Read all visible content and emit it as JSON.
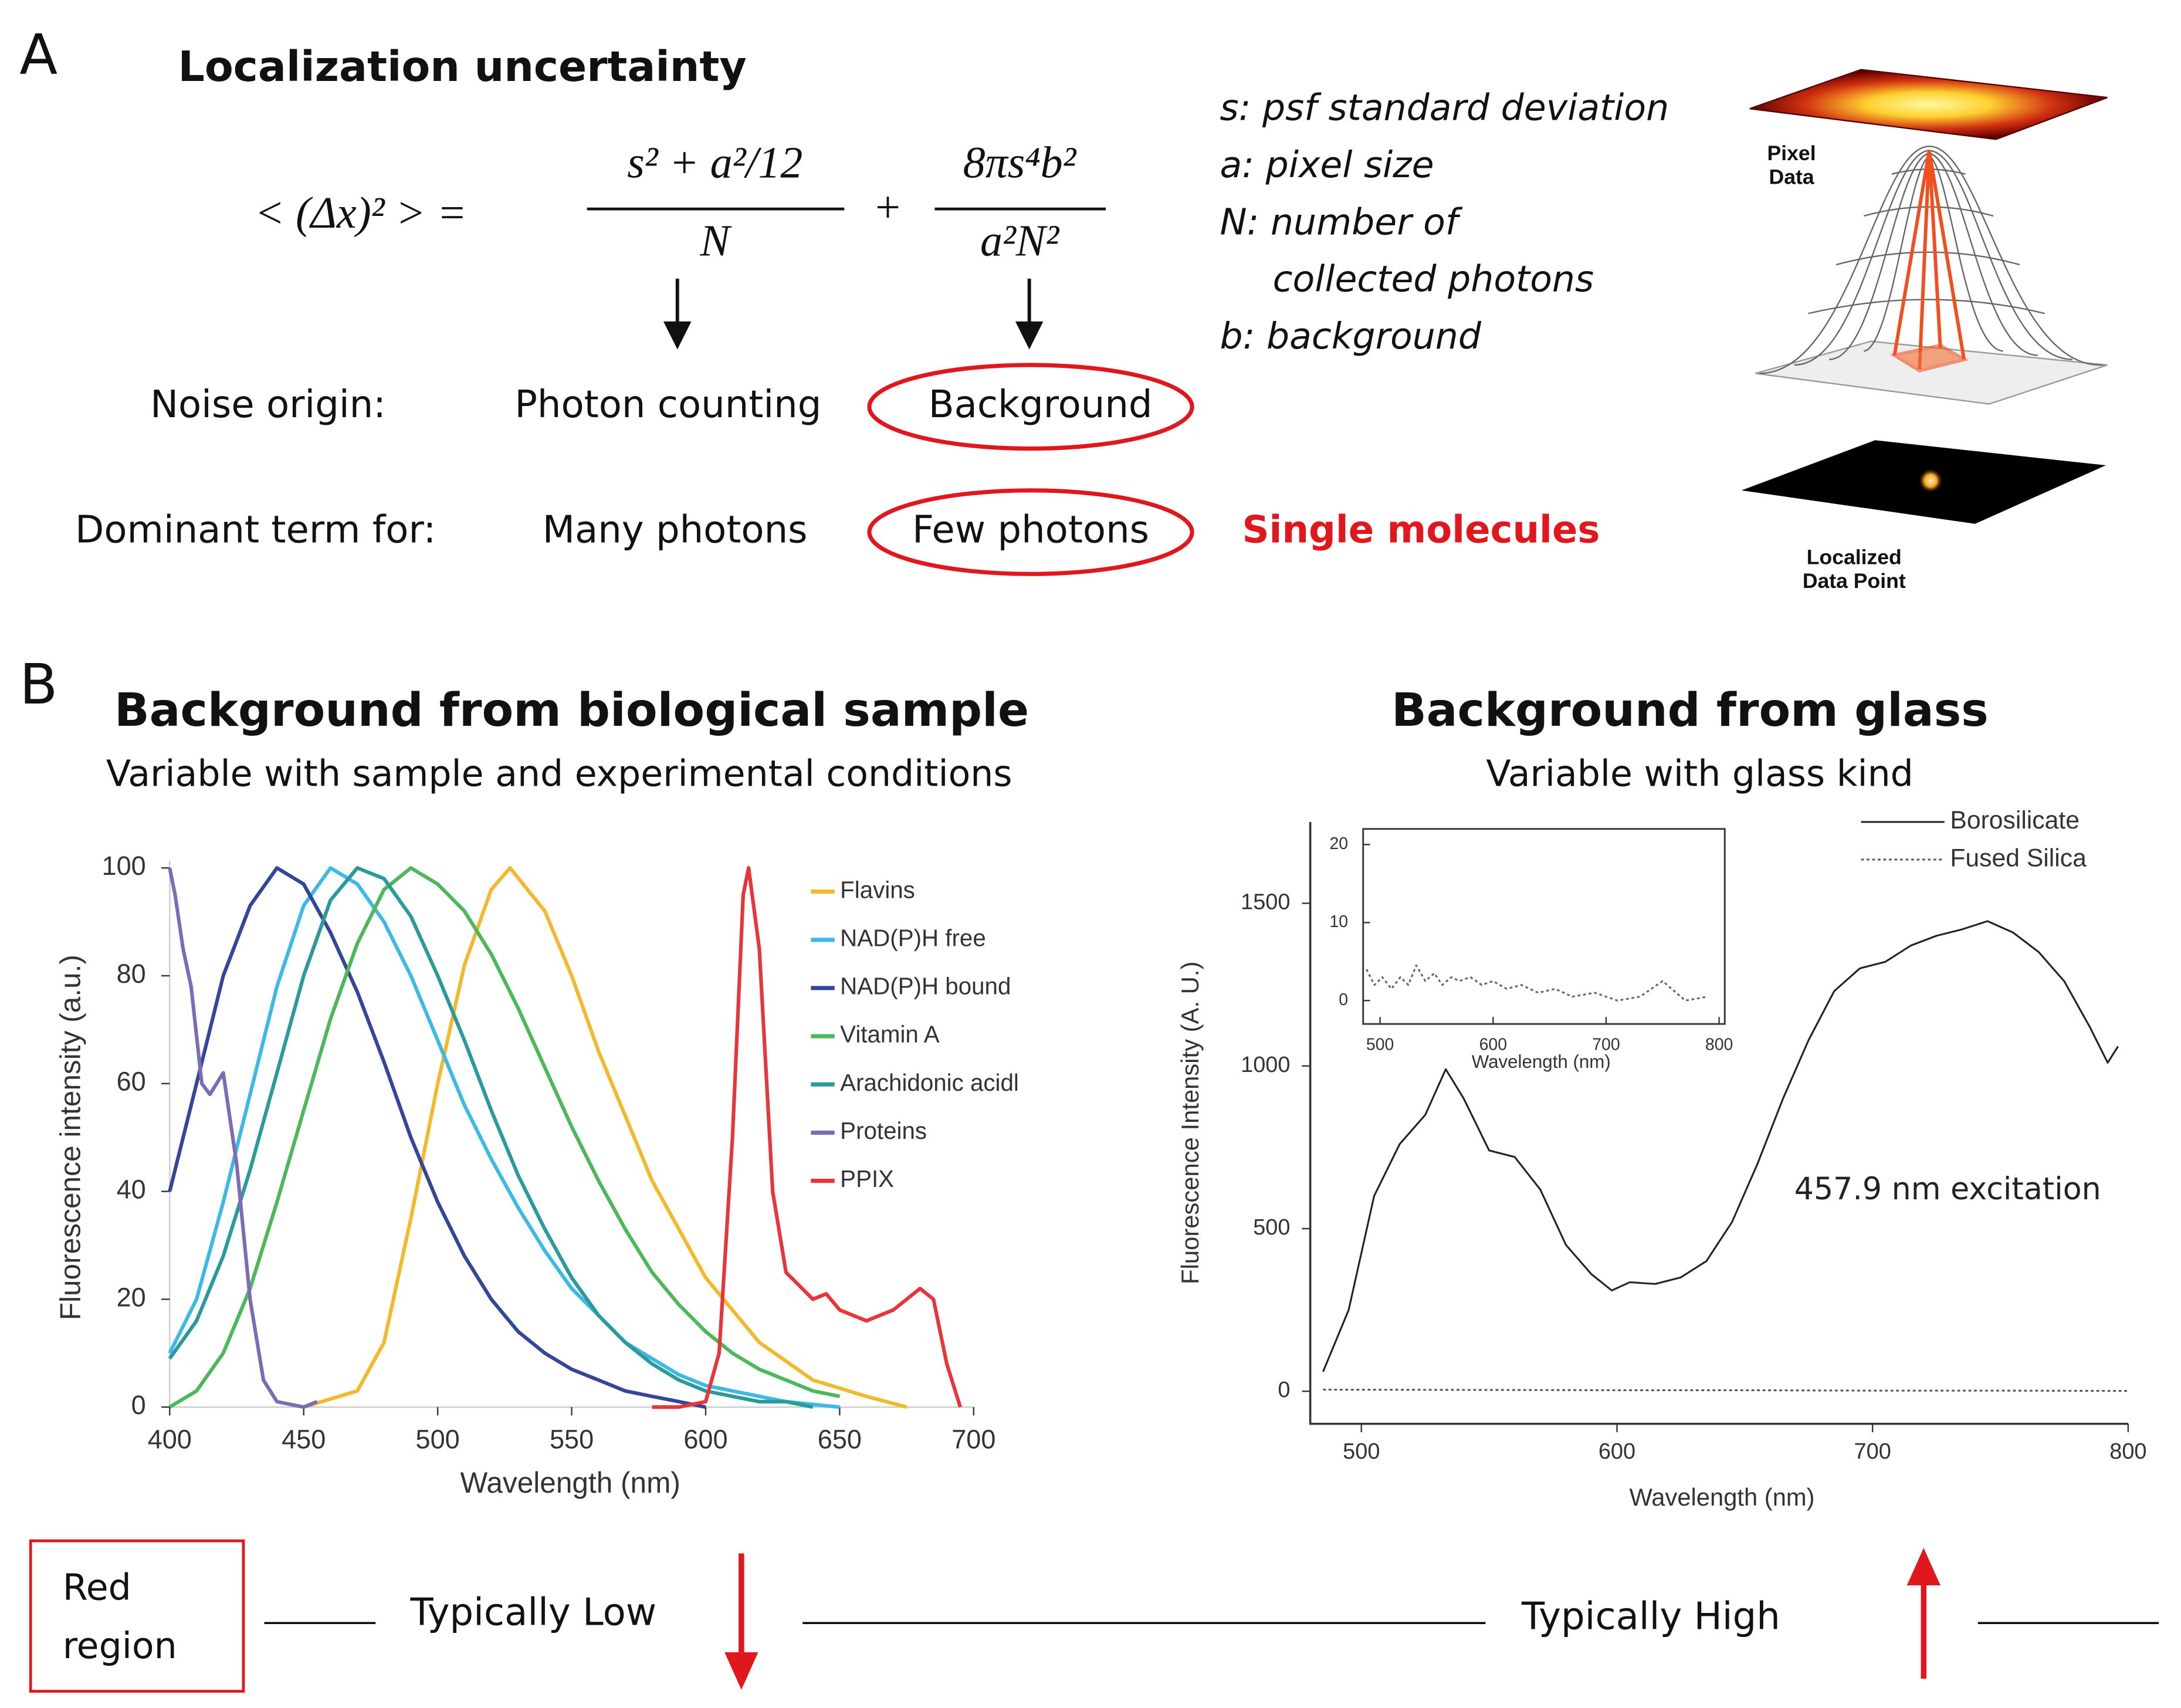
{
  "panel_a": {
    "label": "A",
    "title": "Localization uncertainty",
    "formula": {
      "lhs": "< (Δx)² > =",
      "term1_num": "s² + a²/12",
      "term1_den": "N",
      "plus": "+",
      "term2_num": "8πs⁴b²",
      "term2_den": "a²N²"
    },
    "definitions": [
      "s: psf standard deviation",
      "a: pixel size",
      "N: number of",
      "collected photons",
      "b: background"
    ],
    "rows": [
      {
        "label": "Noise origin:",
        "left": "Photon counting",
        "right": "Background"
      },
      {
        "label": "Dominant term for:",
        "left": "Many photons",
        "right": "Few photons",
        "note": "Single molecules"
      }
    ],
    "image_labels": [
      "Pixel",
      "Data",
      "Localized",
      "Data Point"
    ]
  },
  "panel_b": {
    "label": "B",
    "left_title": "Background from biological sample",
    "left_subtitle": "Variable with sample and experimental conditions",
    "right_title": "Background from glass",
    "right_subtitle": "Variable with glass kind"
  },
  "chart_data": [
    {
      "type": "line",
      "xlabel": "Wavelength (nm)",
      "ylabel": "Fluorescence intensity (a.u.)",
      "xlim": [
        400,
        700
      ],
      "ylim": [
        0,
        100
      ],
      "xticks": [
        400,
        450,
        500,
        550,
        600,
        650,
        700
      ],
      "yticks": [
        0,
        20,
        40,
        60,
        80,
        100
      ],
      "legend": "right",
      "series": [
        {
          "name": "Flavins",
          "color": "#f2b92c",
          "style": "solid",
          "x": [
            450,
            470,
            480,
            490,
            500,
            510,
            520,
            527,
            540,
            550,
            560,
            580,
            600,
            620,
            640,
            660,
            675
          ],
          "values": [
            0,
            3,
            12,
            35,
            60,
            82,
            96,
            100,
            92,
            80,
            66,
            42,
            24,
            12,
            5,
            2,
            0
          ]
        },
        {
          "name": "NAD(P)H free",
          "color": "#3cb9e6",
          "style": "solid",
          "x": [
            400,
            410,
            420,
            430,
            440,
            450,
            460,
            470,
            480,
            490,
            500,
            510,
            520,
            530,
            540,
            550,
            560,
            570,
            580,
            590,
            600,
            610,
            620,
            630,
            640,
            650
          ],
          "values": [
            10,
            20,
            38,
            58,
            78,
            93,
            100,
            97,
            90,
            80,
            68,
            56,
            46,
            37,
            29,
            22,
            17,
            12,
            9,
            6,
            4,
            3,
            2,
            1,
            0.5,
            0
          ]
        },
        {
          "name": "NAD(P)H bound",
          "color": "#34469b",
          "style": "solid",
          "x": [
            400,
            410,
            420,
            430,
            440,
            450,
            460,
            470,
            480,
            490,
            500,
            510,
            520,
            530,
            540,
            550,
            560,
            570,
            580,
            590,
            600
          ],
          "values": [
            40,
            60,
            80,
            93,
            100,
            97,
            88,
            77,
            64,
            50,
            38,
            28,
            20,
            14,
            10,
            7,
            5,
            3,
            2,
            1,
            0
          ]
        },
        {
          "name": "Vitamin A",
          "color": "#4cb85a",
          "style": "solid",
          "x": [
            400,
            410,
            420,
            430,
            440,
            450,
            460,
            470,
            480,
            490,
            500,
            510,
            520,
            530,
            540,
            550,
            560,
            570,
            580,
            590,
            600,
            610,
            620,
            630,
            640,
            650
          ],
          "values": [
            0,
            3,
            10,
            22,
            38,
            55,
            72,
            86,
            96,
            100,
            97,
            92,
            84,
            74,
            63,
            52,
            42,
            33,
            25,
            19,
            14,
            10,
            7,
            5,
            3,
            2
          ]
        },
        {
          "name": "Arachidonic acidl",
          "color": "#2a9a9a",
          "style": "solid",
          "x": [
            400,
            410,
            420,
            430,
            440,
            450,
            460,
            470,
            480,
            490,
            500,
            510,
            520,
            530,
            540,
            550,
            560,
            570,
            580,
            590,
            600,
            610,
            620,
            630,
            640
          ],
          "values": [
            9,
            16,
            28,
            44,
            62,
            80,
            94,
            100,
            98,
            91,
            80,
            68,
            55,
            43,
            33,
            24,
            17,
            12,
            8,
            5,
            3,
            2,
            1,
            1,
            0
          ]
        },
        {
          "name": "Proteins",
          "color": "#7d6cb5",
          "style": "solid",
          "x": [
            400,
            402,
            405,
            408,
            412,
            415,
            420,
            425,
            430,
            435,
            440,
            450,
            455
          ],
          "values": [
            100,
            95,
            85,
            78,
            60,
            58,
            62,
            45,
            20,
            5,
            1,
            0,
            1
          ]
        },
        {
          "name": "PPIX",
          "color": "#e8353a",
          "style": "solid",
          "x": [
            580,
            590,
            600,
            605,
            610,
            614,
            616,
            620,
            625,
            630,
            640,
            645,
            650,
            660,
            670,
            680,
            685,
            690,
            695
          ],
          "values": [
            0,
            0,
            1,
            10,
            50,
            95,
            100,
            85,
            40,
            25,
            20,
            21,
            18,
            16,
            18,
            22,
            20,
            8,
            0
          ]
        }
      ]
    },
    {
      "type": "line",
      "xlabel": "Wavelength (nm)",
      "ylabel": "Fluorescence Intensity (A. U.)",
      "xlim": [
        480,
        800
      ],
      "ylim": [
        -100,
        1750
      ],
      "xticks": [
        500,
        600,
        700,
        800
      ],
      "yticks": [
        0,
        500,
        1000,
        1500
      ],
      "legend": "upper right",
      "annotation": "457.9 nm excitation",
      "series": [
        {
          "name": "Borosilicate",
          "color": "#222222",
          "style": "solid",
          "x": [
            485,
            495,
            505,
            515,
            525,
            533,
            540,
            550,
            560,
            570,
            580,
            590,
            598,
            605,
            615,
            625,
            635,
            645,
            655,
            665,
            675,
            685,
            695,
            705,
            715,
            725,
            735,
            745,
            755,
            765,
            775,
            785,
            792,
            796
          ],
          "values": [
            60,
            250,
            600,
            760,
            850,
            990,
            900,
            740,
            720,
            620,
            450,
            360,
            310,
            335,
            330,
            350,
            400,
            520,
            700,
            900,
            1080,
            1230,
            1300,
            1320,
            1370,
            1400,
            1420,
            1445,
            1410,
            1350,
            1260,
            1120,
            1010,
            1060
          ]
        },
        {
          "name": "Fused Silica",
          "color": "#555555",
          "style": "dotted",
          "x": [
            485,
            550,
            600,
            650,
            700,
            750,
            800
          ],
          "values": [
            5,
            4,
            3,
            3,
            2,
            2,
            1
          ]
        }
      ]
    },
    {
      "type": "line",
      "xlabel": "Wavelength (nm)",
      "xlim": [
        485,
        805
      ],
      "ylim": [
        -3,
        22
      ],
      "xticks": [
        500,
        600,
        700,
        800
      ],
      "yticks": [
        0,
        10,
        20
      ],
      "series": [
        {
          "color": "#666666",
          "style": "dotted",
          "x": [
            488,
            495,
            502,
            510,
            518,
            525,
            532,
            540,
            548,
            555,
            563,
            570,
            580,
            590,
            600,
            612,
            625,
            640,
            655,
            670,
            690,
            710,
            730,
            750,
            770,
            790
          ],
          "values": [
            4,
            2,
            3,
            1.5,
            3,
            2,
            4.5,
            2.5,
            3.5,
            2,
            3,
            2.5,
            3,
            2,
            2.5,
            1.5,
            2,
            1,
            1.5,
            0.5,
            1,
            0,
            0.5,
            2.5,
            0,
            0.5
          ]
        }
      ]
    }
  ],
  "bottom": {
    "box": [
      "Red",
      "region"
    ],
    "low": "Typically Low",
    "high": "Typically High"
  }
}
